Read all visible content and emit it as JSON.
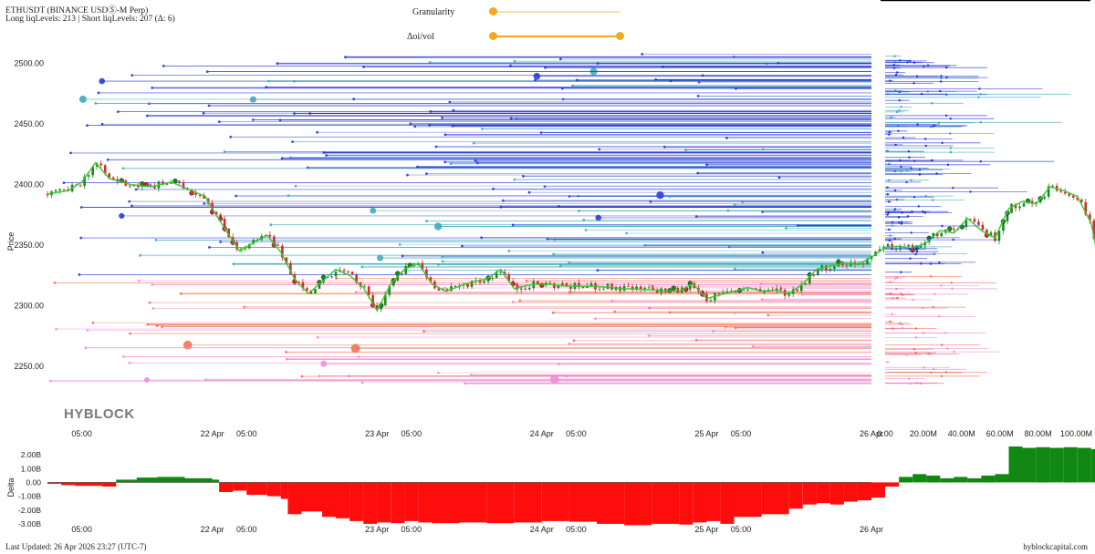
{
  "header": {
    "title": "ETHUSDT (BINANCE USDⓈ-M Perp)",
    "levels_text": "Long liqLevels: 213 | Short liqLevels: 207 (Δ: 6)"
  },
  "controls": {
    "granularity_label": "Granularity",
    "granularity_value": 0.0,
    "doi_label": "Δoi/vol",
    "doi_range": [
      0.0,
      1.0
    ],
    "accent_color": "#f4a81d"
  },
  "watermark": "HYBLOCK",
  "footer": {
    "last_updated": "Last Updated: 26 Apr 2026 23:27 (UTC-7)",
    "site": "hyblockcapital.com"
  },
  "chart_data": [
    {
      "type": "line",
      "name": "price-liquidation-levels",
      "ylabel": "Price",
      "xlabel": "",
      "ylim": [
        2205,
        2510
      ],
      "y_ticks": [
        2250,
        2300,
        2350,
        2400,
        2450,
        2500
      ],
      "y_tick_labels": [
        "2250.00",
        "2300.00",
        "2350.00",
        "2400.00",
        "2450.00",
        "2500.00"
      ],
      "x_range_hours": [
        -24,
        96
      ],
      "x_ticks": [
        {
          "h": -19,
          "label": "05:00"
        },
        {
          "h": 0,
          "label": "22 Apr"
        },
        {
          "h": 5,
          "label": "05:00"
        },
        {
          "h": 24,
          "label": "23 Apr"
        },
        {
          "h": 29,
          "label": "05:00"
        },
        {
          "h": 48,
          "label": "24 Apr"
        },
        {
          "h": 53,
          "label": "05:00"
        },
        {
          "h": 72,
          "label": "25 Apr"
        },
        {
          "h": 77,
          "label": "05:00"
        },
        {
          "h": 96,
          "label": "26 Apr"
        }
      ],
      "price_path": [
        [
          -24,
          2392
        ],
        [
          -21,
          2395
        ],
        [
          -19,
          2402
        ],
        [
          -17,
          2418
        ],
        [
          -15,
          2405
        ],
        [
          -12,
          2400
        ],
        [
          -9,
          2398
        ],
        [
          -6,
          2402
        ],
        [
          -3,
          2395
        ],
        [
          -1,
          2390
        ],
        [
          0,
          2380
        ],
        [
          2,
          2362
        ],
        [
          4,
          2345
        ],
        [
          6,
          2352
        ],
        [
          8,
          2358
        ],
        [
          10,
          2344
        ],
        [
          12,
          2322
        ],
        [
          14,
          2310
        ],
        [
          16,
          2320
        ],
        [
          18,
          2330
        ],
        [
          20,
          2325
        ],
        [
          22,
          2315
        ],
        [
          24,
          2296
        ],
        [
          26,
          2318
        ],
        [
          28,
          2330
        ],
        [
          30,
          2335
        ],
        [
          32,
          2318
        ],
        [
          34,
          2312
        ],
        [
          36,
          2316
        ],
        [
          38,
          2320
        ],
        [
          40,
          2322
        ],
        [
          42,
          2330
        ],
        [
          44,
          2314
        ],
        [
          46,
          2317
        ],
        [
          48,
          2318
        ],
        [
          52,
          2316
        ],
        [
          56,
          2316
        ],
        [
          60,
          2314
        ],
        [
          64,
          2313
        ],
        [
          68,
          2312
        ],
        [
          70,
          2318
        ],
        [
          72,
          2306
        ],
        [
          74,
          2309
        ],
        [
          76,
          2312
        ],
        [
          78,
          2315
        ],
        [
          80,
          2312
        ],
        [
          82,
          2313
        ],
        [
          84,
          2310
        ],
        [
          86,
          2318
        ],
        [
          88,
          2330
        ],
        [
          90,
          2333
        ],
        [
          92,
          2335
        ],
        [
          94,
          2334
        ],
        [
          96,
          2340
        ],
        [
          98,
          2348
        ],
        [
          100,
          2349
        ],
        [
          102,
          2347
        ],
        [
          104,
          2352
        ],
        [
          106,
          2362
        ],
        [
          108,
          2360
        ],
        [
          110,
          2372
        ],
        [
          112,
          2362
        ],
        [
          114,
          2356
        ],
        [
          116,
          2380
        ],
        [
          118,
          2386
        ],
        [
          120,
          2384
        ],
        [
          122,
          2398
        ],
        [
          124,
          2395
        ],
        [
          126,
          2390
        ],
        [
          128,
          2368
        ],
        [
          129,
          2340
        ],
        [
          130,
          2318
        ]
      ],
      "current_price": 2326,
      "short_liq_color": "#1f2fd6",
      "short_liq_secondary_color": "#3aa6b8",
      "long_liq_color": "#f26b4d",
      "long_liq_secondary_color": "#f08ad6",
      "price_line_color": "#35c935",
      "candle_up_color": "#1b8a1b",
      "candle_down_color": "#d62a2a"
    },
    {
      "type": "bar",
      "name": "liq-volume-histogram",
      "xlabel": "",
      "ylabel": "",
      "xlim": [
        0,
        105
      ],
      "x_ticks": [
        {
          "v": 0,
          "label": "0.00"
        },
        {
          "v": 20,
          "label": "20.00M"
        },
        {
          "v": 40,
          "label": "40.00M"
        },
        {
          "v": 60,
          "label": "60.00M"
        },
        {
          "v": 80,
          "label": "80.00M"
        },
        {
          "v": 100,
          "label": "100.00M"
        }
      ],
      "current_price_marker": 2326
    },
    {
      "type": "area",
      "name": "delta",
      "ylabel": "Delta",
      "ylim": [
        -3.2,
        2.6
      ],
      "y_ticks": [
        {
          "v": 2,
          "label": "2.00B"
        },
        {
          "v": 1,
          "label": "1.00B"
        },
        {
          "v": 0,
          "label": "0.00"
        },
        {
          "v": -1,
          "label": "-1.00B"
        },
        {
          "v": -2,
          "label": "-2.00B"
        },
        {
          "v": -3,
          "label": "-3.00B"
        }
      ],
      "positive_color": "#118811",
      "negative_color": "#ff0d0d",
      "values": [
        [
          -24,
          -0.1
        ],
        [
          -22,
          -0.2
        ],
        [
          -20,
          -0.25
        ],
        [
          -16,
          -0.3
        ],
        [
          -14,
          0.2
        ],
        [
          -11,
          0.35
        ],
        [
          -8,
          0.4
        ],
        [
          -4,
          0.3
        ],
        [
          0,
          0.2
        ],
        [
          1,
          -0.7
        ],
        [
          3,
          -0.6
        ],
        [
          5,
          -0.9
        ],
        [
          8,
          -1.0
        ],
        [
          10,
          -1.2
        ],
        [
          11,
          -2.3
        ],
        [
          13,
          -2.1
        ],
        [
          16,
          -2.5
        ],
        [
          18,
          -2.6
        ],
        [
          20,
          -2.8
        ],
        [
          22,
          -3.0
        ],
        [
          24,
          -2.9
        ],
        [
          26,
          -2.95
        ],
        [
          28,
          -2.8
        ],
        [
          30,
          -2.9
        ],
        [
          32,
          -2.95
        ],
        [
          36,
          -2.9
        ],
        [
          40,
          -2.95
        ],
        [
          44,
          -2.9
        ],
        [
          48,
          -2.8
        ],
        [
          52,
          -2.85
        ],
        [
          56,
          -3.0
        ],
        [
          60,
          -3.1
        ],
        [
          64,
          -3.0
        ],
        [
          68,
          -3.05
        ],
        [
          70,
          -2.9
        ],
        [
          72,
          -2.8
        ],
        [
          74,
          -3.0
        ],
        [
          76,
          -2.5
        ],
        [
          80,
          -2.3
        ],
        [
          84,
          -1.9
        ],
        [
          86,
          -1.6
        ],
        [
          88,
          -1.5
        ],
        [
          90,
          -1.6
        ],
        [
          92,
          -1.4
        ],
        [
          94,
          -1.3
        ],
        [
          96,
          -1.1
        ],
        [
          98,
          -0.3
        ],
        [
          100,
          0.4
        ],
        [
          102,
          0.6
        ],
        [
          104,
          0.5
        ],
        [
          106,
          0.3
        ],
        [
          108,
          0.4
        ],
        [
          110,
          0.3
        ],
        [
          112,
          0.5
        ],
        [
          114,
          0.6
        ],
        [
          116,
          2.6
        ],
        [
          118,
          2.5
        ],
        [
          120,
          2.55
        ],
        [
          122,
          2.5
        ],
        [
          124,
          2.55
        ],
        [
          126,
          2.5
        ],
        [
          128,
          2.4
        ],
        [
          129,
          0.5
        ],
        [
          130,
          0.6
        ]
      ]
    }
  ]
}
